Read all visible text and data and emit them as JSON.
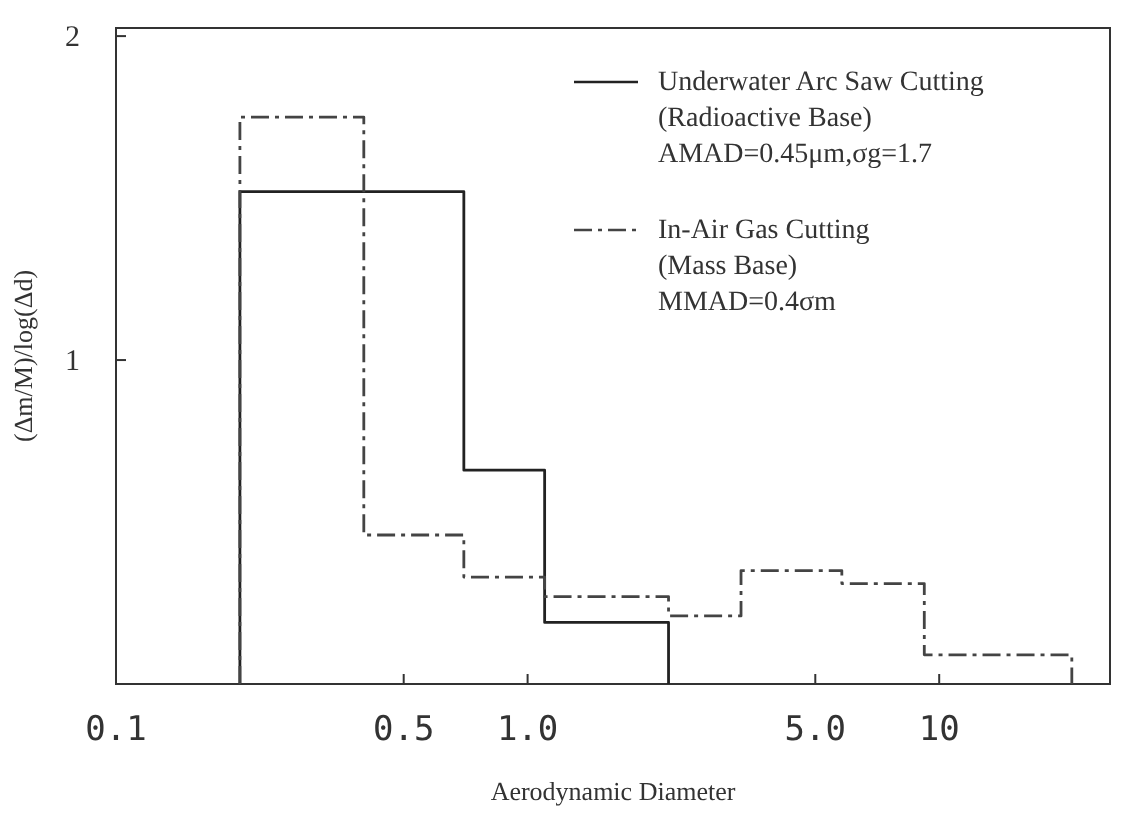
{
  "chart_data": {
    "type": "step",
    "xlabel": "Aerodynamic Diameter",
    "ylabel": "(Δm/M)/log(Δd)",
    "log": "x",
    "xlim": [
      0.1,
      26
    ],
    "xticks": [
      {
        "value": 0.1,
        "label": "0.1"
      },
      {
        "value": 0.5,
        "label": "0.5"
      },
      {
        "value": 1,
        "label": "1.0"
      },
      {
        "value": 5,
        "label": "5.0"
      },
      {
        "value": 10,
        "label": "10"
      }
    ],
    "ylim": [
      0,
      2.025
    ],
    "yticks": [
      1,
      2
    ],
    "legend": "top right",
    "series": [
      {
        "name": "Underwater Arc Saw Cutting\n(Radioactive Base)\nAMAD=0.45μm,σg=1.7",
        "color": "#222222",
        "line_style": "solid",
        "x": [
          0.2,
          0.2,
          0.7,
          1.1,
          2.2
        ],
        "values": [
          0,
          1.52,
          0.66,
          0.19,
          0
        ]
      },
      {
        "name": "In-Air Gas Cutting\n(Mass Base)\nMMAD=0.4σm",
        "color": "#444444",
        "line_style": "dashed",
        "x": [
          0.2,
          0.2,
          0.4,
          0.7,
          1.1,
          2.2,
          3.3,
          5.8,
          9.2,
          21
        ],
        "values": [
          0,
          1.75,
          0.46,
          0.33,
          0.27,
          0.21,
          0.35,
          0.31,
          0.09,
          0
        ]
      }
    ]
  }
}
